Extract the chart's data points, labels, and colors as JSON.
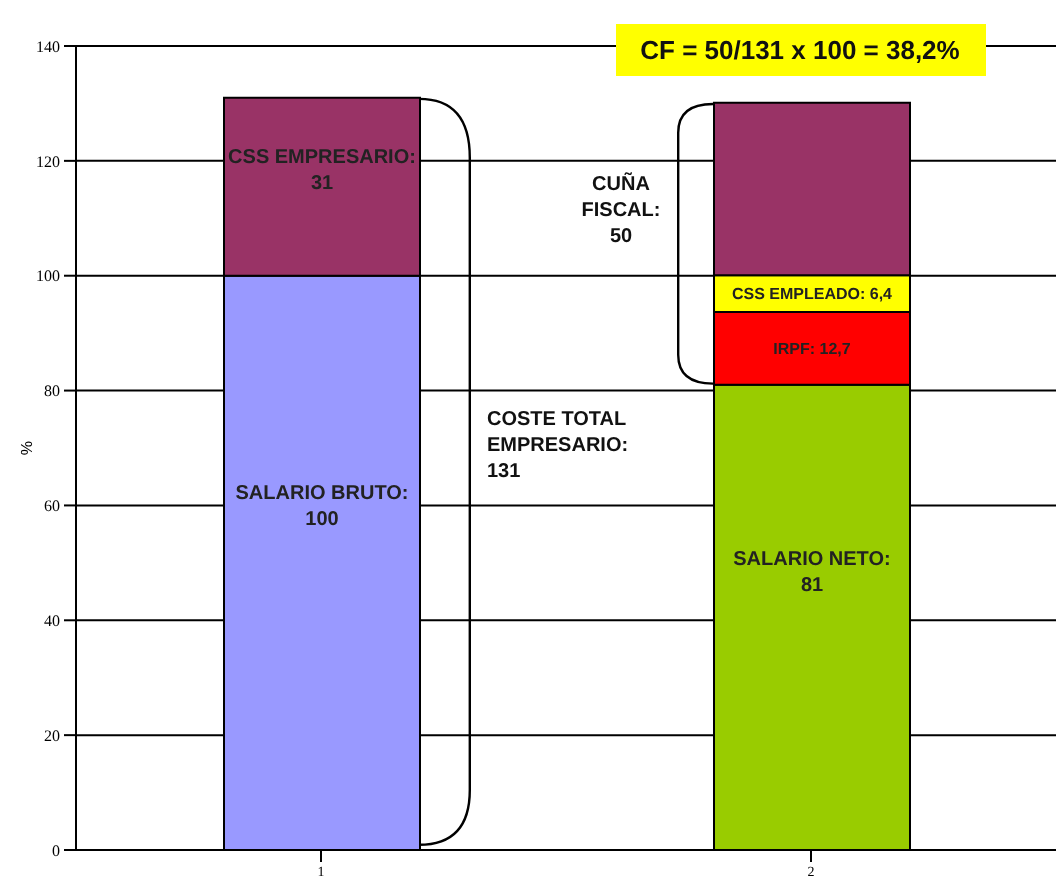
{
  "chart_data": {
    "type": "bar",
    "stacked": true,
    "categories": [
      "1",
      "2"
    ],
    "ylabel": "%",
    "ylim": [
      0,
      140
    ],
    "yticks": [
      0,
      20,
      40,
      60,
      80,
      100,
      120,
      140
    ],
    "grid": "y",
    "legend": false,
    "series": [
      {
        "colors": [
          "#9999ff",
          "#99cc00"
        ],
        "values": [
          100,
          81
        ],
        "value_labels": [
          "SALARIO BRUTO: 100",
          "SALARIO NETO: 81"
        ]
      },
      {
        "color": "#ff0000",
        "values": [
          null,
          12.7
        ],
        "value_labels": [
          null,
          "IRPF: 12,7"
        ]
      },
      {
        "color": "#ffff00",
        "values": [
          null,
          6.4
        ],
        "value_labels": [
          null,
          "CSS EMPLEADO: 6,4"
        ]
      },
      {
        "color": "#993366",
        "values": [
          31,
          30
        ],
        "value_labels": [
          "CSS EMPRESARIO: 31",
          null
        ]
      }
    ],
    "annotations": [
      "CF = 50/131 x 100 = 38,2%",
      "COSTE TOTAL EMPRESARIO: 131",
      "CUÑA FISCAL: 50"
    ]
  }
}
